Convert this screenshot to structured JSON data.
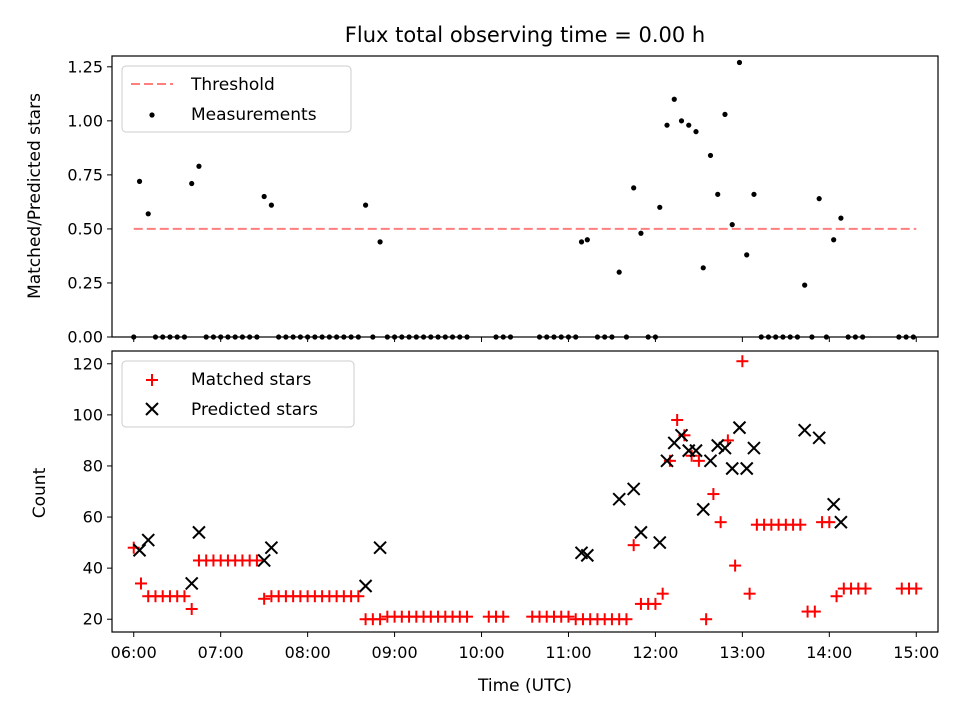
{
  "chart_data": [
    {
      "type": "scatter",
      "title": "Flux total observing time = 0.00 h",
      "xlabel": "",
      "ylabel": "Matched/Predicted stars",
      "xlim": [
        "05:45",
        "15:15"
      ],
      "ylim": [
        0,
        1.3
      ],
      "yticks": [
        "0.00",
        "0.25",
        "0.50",
        "0.75",
        "1.00",
        "1.25"
      ],
      "yticks_values": [
        0,
        0.25,
        0.5,
        0.75,
        1.0,
        1.25
      ],
      "xticks_values": [
        "06:00",
        "07:00",
        "08:00",
        "09:00",
        "10:00",
        "11:00",
        "12:00",
        "13:00",
        "14:00",
        "15:00"
      ],
      "xtick_labels_shown": false,
      "legend": {
        "placement": "top-left",
        "entries": [
          "Threshold",
          "Measurements"
        ]
      },
      "threshold": {
        "name": "Threshold",
        "value": 0.5,
        "x_start": "06:00",
        "x_end": "15:00",
        "style": "dashed",
        "color": "#ff7f7f"
      },
      "series": [
        {
          "name": "Measurements",
          "color": "#000000",
          "marker": "dot",
          "points": [
            [
              "06:00",
              0.0
            ],
            [
              "06:04",
              0.72
            ],
            [
              "06:10",
              0.57
            ],
            [
              "06:15",
              0.0
            ],
            [
              "06:20",
              0.0
            ],
            [
              "06:25",
              0.0
            ],
            [
              "06:30",
              0.0
            ],
            [
              "06:35",
              0.0
            ],
            [
              "06:40",
              0.71
            ],
            [
              "06:45",
              0.79
            ],
            [
              "06:50",
              0.0
            ],
            [
              "06:55",
              0.0
            ],
            [
              "07:00",
              0.0
            ],
            [
              "07:05",
              0.0
            ],
            [
              "07:10",
              0.0
            ],
            [
              "07:15",
              0.0
            ],
            [
              "07:20",
              0.0
            ],
            [
              "07:25",
              0.0
            ],
            [
              "07:30",
              0.65
            ],
            [
              "07:35",
              0.61
            ],
            [
              "07:40",
              0.0
            ],
            [
              "07:45",
              0.0
            ],
            [
              "07:50",
              0.0
            ],
            [
              "07:55",
              0.0
            ],
            [
              "08:00",
              0.0
            ],
            [
              "08:05",
              0.0
            ],
            [
              "08:10",
              0.0
            ],
            [
              "08:15",
              0.0
            ],
            [
              "08:20",
              0.0
            ],
            [
              "08:25",
              0.0
            ],
            [
              "08:30",
              0.0
            ],
            [
              "08:35",
              0.0
            ],
            [
              "08:40",
              0.61
            ],
            [
              "08:45",
              0.0
            ],
            [
              "08:50",
              0.44
            ],
            [
              "08:55",
              0.0
            ],
            [
              "09:00",
              0.0
            ],
            [
              "09:05",
              0.0
            ],
            [
              "09:10",
              0.0
            ],
            [
              "09:15",
              0.0
            ],
            [
              "09:20",
              0.0
            ],
            [
              "09:25",
              0.0
            ],
            [
              "09:30",
              0.0
            ],
            [
              "09:35",
              0.0
            ],
            [
              "09:40",
              0.0
            ],
            [
              "09:45",
              0.0
            ],
            [
              "09:50",
              0.0
            ],
            [
              "10:10",
              0.0
            ],
            [
              "10:15",
              0.0
            ],
            [
              "10:20",
              0.0
            ],
            [
              "10:40",
              0.0
            ],
            [
              "10:45",
              0.0
            ],
            [
              "10:50",
              0.0
            ],
            [
              "10:55",
              0.0
            ],
            [
              "11:00",
              0.0
            ],
            [
              "11:05",
              0.0
            ],
            [
              "11:09",
              0.44
            ],
            [
              "11:13",
              0.45
            ],
            [
              "11:20",
              0.0
            ],
            [
              "11:25",
              0.0
            ],
            [
              "11:30",
              0.0
            ],
            [
              "11:35",
              0.3
            ],
            [
              "11:40",
              0.0
            ],
            [
              "11:45",
              0.69
            ],
            [
              "11:50",
              0.48
            ],
            [
              "11:55",
              0.0
            ],
            [
              "12:00",
              0.0
            ],
            [
              "12:03",
              0.6
            ],
            [
              "12:08",
              0.98
            ],
            [
              "12:13",
              1.1
            ],
            [
              "12:18",
              1.0
            ],
            [
              "12:23",
              0.98
            ],
            [
              "12:28",
              0.95
            ],
            [
              "12:33",
              0.32
            ],
            [
              "12:38",
              0.84
            ],
            [
              "12:43",
              0.66
            ],
            [
              "12:48",
              1.03
            ],
            [
              "12:53",
              0.52
            ],
            [
              "12:58",
              1.27
            ],
            [
              "13:03",
              0.38
            ],
            [
              "13:08",
              0.66
            ],
            [
              "13:13",
              0.0
            ],
            [
              "13:18",
              0.0
            ],
            [
              "13:23",
              0.0
            ],
            [
              "13:28",
              0.0
            ],
            [
              "13:33",
              0.0
            ],
            [
              "13:38",
              0.0
            ],
            [
              "13:43",
              0.24
            ],
            [
              "13:48",
              0.0
            ],
            [
              "13:53",
              0.64
            ],
            [
              "13:58",
              0.0
            ],
            [
              "14:03",
              0.45
            ],
            [
              "14:08",
              0.55
            ],
            [
              "14:13",
              0.0
            ],
            [
              "14:18",
              0.0
            ],
            [
              "14:23",
              0.0
            ],
            [
              "14:48",
              0.0
            ],
            [
              "14:53",
              0.0
            ],
            [
              "14:58",
              0.0
            ]
          ]
        }
      ]
    },
    {
      "type": "scatter",
      "title": "",
      "xlabel": "Time (UTC)",
      "ylabel": "Count",
      "xlim": [
        "05:45",
        "15:15"
      ],
      "ylim": [
        15,
        125
      ],
      "xticks": [
        "06:00",
        "07:00",
        "08:00",
        "09:00",
        "10:00",
        "11:00",
        "12:00",
        "13:00",
        "14:00",
        "15:00"
      ],
      "yticks": [
        "20",
        "40",
        "60",
        "80",
        "100",
        "120"
      ],
      "yticks_values": [
        20,
        40,
        60,
        80,
        100,
        120
      ],
      "legend": {
        "placement": "top-left",
        "entries": [
          "Matched stars",
          "Predicted stars"
        ]
      },
      "series": [
        {
          "name": "Matched stars",
          "color": "#ff0000",
          "marker": "plus",
          "points": [
            [
              "06:00",
              48
            ],
            [
              "06:05",
              34
            ],
            [
              "06:10",
              29
            ],
            [
              "06:15",
              29
            ],
            [
              "06:20",
              29
            ],
            [
              "06:25",
              29
            ],
            [
              "06:30",
              29
            ],
            [
              "06:35",
              29
            ],
            [
              "06:40",
              24
            ],
            [
              "06:45",
              43
            ],
            [
              "06:50",
              43
            ],
            [
              "06:55",
              43
            ],
            [
              "07:00",
              43
            ],
            [
              "07:05",
              43
            ],
            [
              "07:10",
              43
            ],
            [
              "07:15",
              43
            ],
            [
              "07:20",
              43
            ],
            [
              "07:25",
              43
            ],
            [
              "07:30",
              28
            ],
            [
              "07:35",
              29
            ],
            [
              "07:40",
              29
            ],
            [
              "07:45",
              29
            ],
            [
              "07:50",
              29
            ],
            [
              "07:55",
              29
            ],
            [
              "08:00",
              29
            ],
            [
              "08:05",
              29
            ],
            [
              "08:10",
              29
            ],
            [
              "08:15",
              29
            ],
            [
              "08:20",
              29
            ],
            [
              "08:25",
              29
            ],
            [
              "08:30",
              29
            ],
            [
              "08:35",
              29
            ],
            [
              "08:40",
              20
            ],
            [
              "08:45",
              20
            ],
            [
              "08:50",
              20
            ],
            [
              "08:55",
              21
            ],
            [
              "09:00",
              21
            ],
            [
              "09:05",
              21
            ],
            [
              "09:10",
              21
            ],
            [
              "09:15",
              21
            ],
            [
              "09:20",
              21
            ],
            [
              "09:25",
              21
            ],
            [
              "09:30",
              21
            ],
            [
              "09:35",
              21
            ],
            [
              "09:40",
              21
            ],
            [
              "09:45",
              21
            ],
            [
              "09:50",
              21
            ],
            [
              "10:05",
              21
            ],
            [
              "10:10",
              21
            ],
            [
              "10:15",
              21
            ],
            [
              "10:35",
              21
            ],
            [
              "10:40",
              21
            ],
            [
              "10:45",
              21
            ],
            [
              "10:50",
              21
            ],
            [
              "10:55",
              21
            ],
            [
              "11:00",
              21
            ],
            [
              "11:05",
              20
            ],
            [
              "11:10",
              20
            ],
            [
              "11:15",
              20
            ],
            [
              "11:20",
              20
            ],
            [
              "11:25",
              20
            ],
            [
              "11:30",
              20
            ],
            [
              "11:35",
              20
            ],
            [
              "11:40",
              20
            ],
            [
              "11:45",
              49
            ],
            [
              "11:50",
              26
            ],
            [
              "11:55",
              26
            ],
            [
              "12:00",
              26
            ],
            [
              "12:05",
              30
            ],
            [
              "12:10",
              82
            ],
            [
              "12:15",
              98
            ],
            [
              "12:20",
              92
            ],
            [
              "12:25",
              84
            ],
            [
              "12:30",
              82
            ],
            [
              "12:35",
              20
            ],
            [
              "12:40",
              69
            ],
            [
              "12:45",
              58
            ],
            [
              "12:50",
              90
            ],
            [
              "12:55",
              41
            ],
            [
              "13:00",
              121
            ],
            [
              "13:05",
              30
            ],
            [
              "13:10",
              57
            ],
            [
              "13:15",
              57
            ],
            [
              "13:20",
              57
            ],
            [
              "13:25",
              57
            ],
            [
              "13:30",
              57
            ],
            [
              "13:35",
              57
            ],
            [
              "13:40",
              57
            ],
            [
              "13:45",
              23
            ],
            [
              "13:50",
              23
            ],
            [
              "13:55",
              58
            ],
            [
              "14:00",
              58
            ],
            [
              "14:05",
              29
            ],
            [
              "14:10",
              32
            ],
            [
              "14:15",
              32
            ],
            [
              "14:20",
              32
            ],
            [
              "14:25",
              32
            ],
            [
              "14:50",
              32
            ],
            [
              "14:55",
              32
            ],
            [
              "15:00",
              32
            ]
          ]
        },
        {
          "name": "Predicted stars",
          "color": "#000000",
          "marker": "x",
          "points": [
            [
              "06:04",
              47
            ],
            [
              "06:10",
              51
            ],
            [
              "06:40",
              34
            ],
            [
              "06:45",
              54
            ],
            [
              "07:30",
              43
            ],
            [
              "07:35",
              48
            ],
            [
              "08:40",
              33
            ],
            [
              "08:50",
              48
            ],
            [
              "11:09",
              46
            ],
            [
              "11:13",
              45
            ],
            [
              "11:35",
              67
            ],
            [
              "11:45",
              71
            ],
            [
              "11:50",
              54
            ],
            [
              "12:03",
              50
            ],
            [
              "12:08",
              82
            ],
            [
              "12:13",
              89
            ],
            [
              "12:18",
              92
            ],
            [
              "12:23",
              86
            ],
            [
              "12:28",
              86
            ],
            [
              "12:33",
              63
            ],
            [
              "12:38",
              82
            ],
            [
              "12:43",
              88
            ],
            [
              "12:48",
              87
            ],
            [
              "12:53",
              79
            ],
            [
              "12:58",
              95
            ],
            [
              "13:03",
              79
            ],
            [
              "13:08",
              87
            ],
            [
              "13:43",
              94
            ],
            [
              "13:53",
              91
            ],
            [
              "14:03",
              65
            ],
            [
              "14:08",
              58
            ]
          ]
        }
      ]
    }
  ]
}
